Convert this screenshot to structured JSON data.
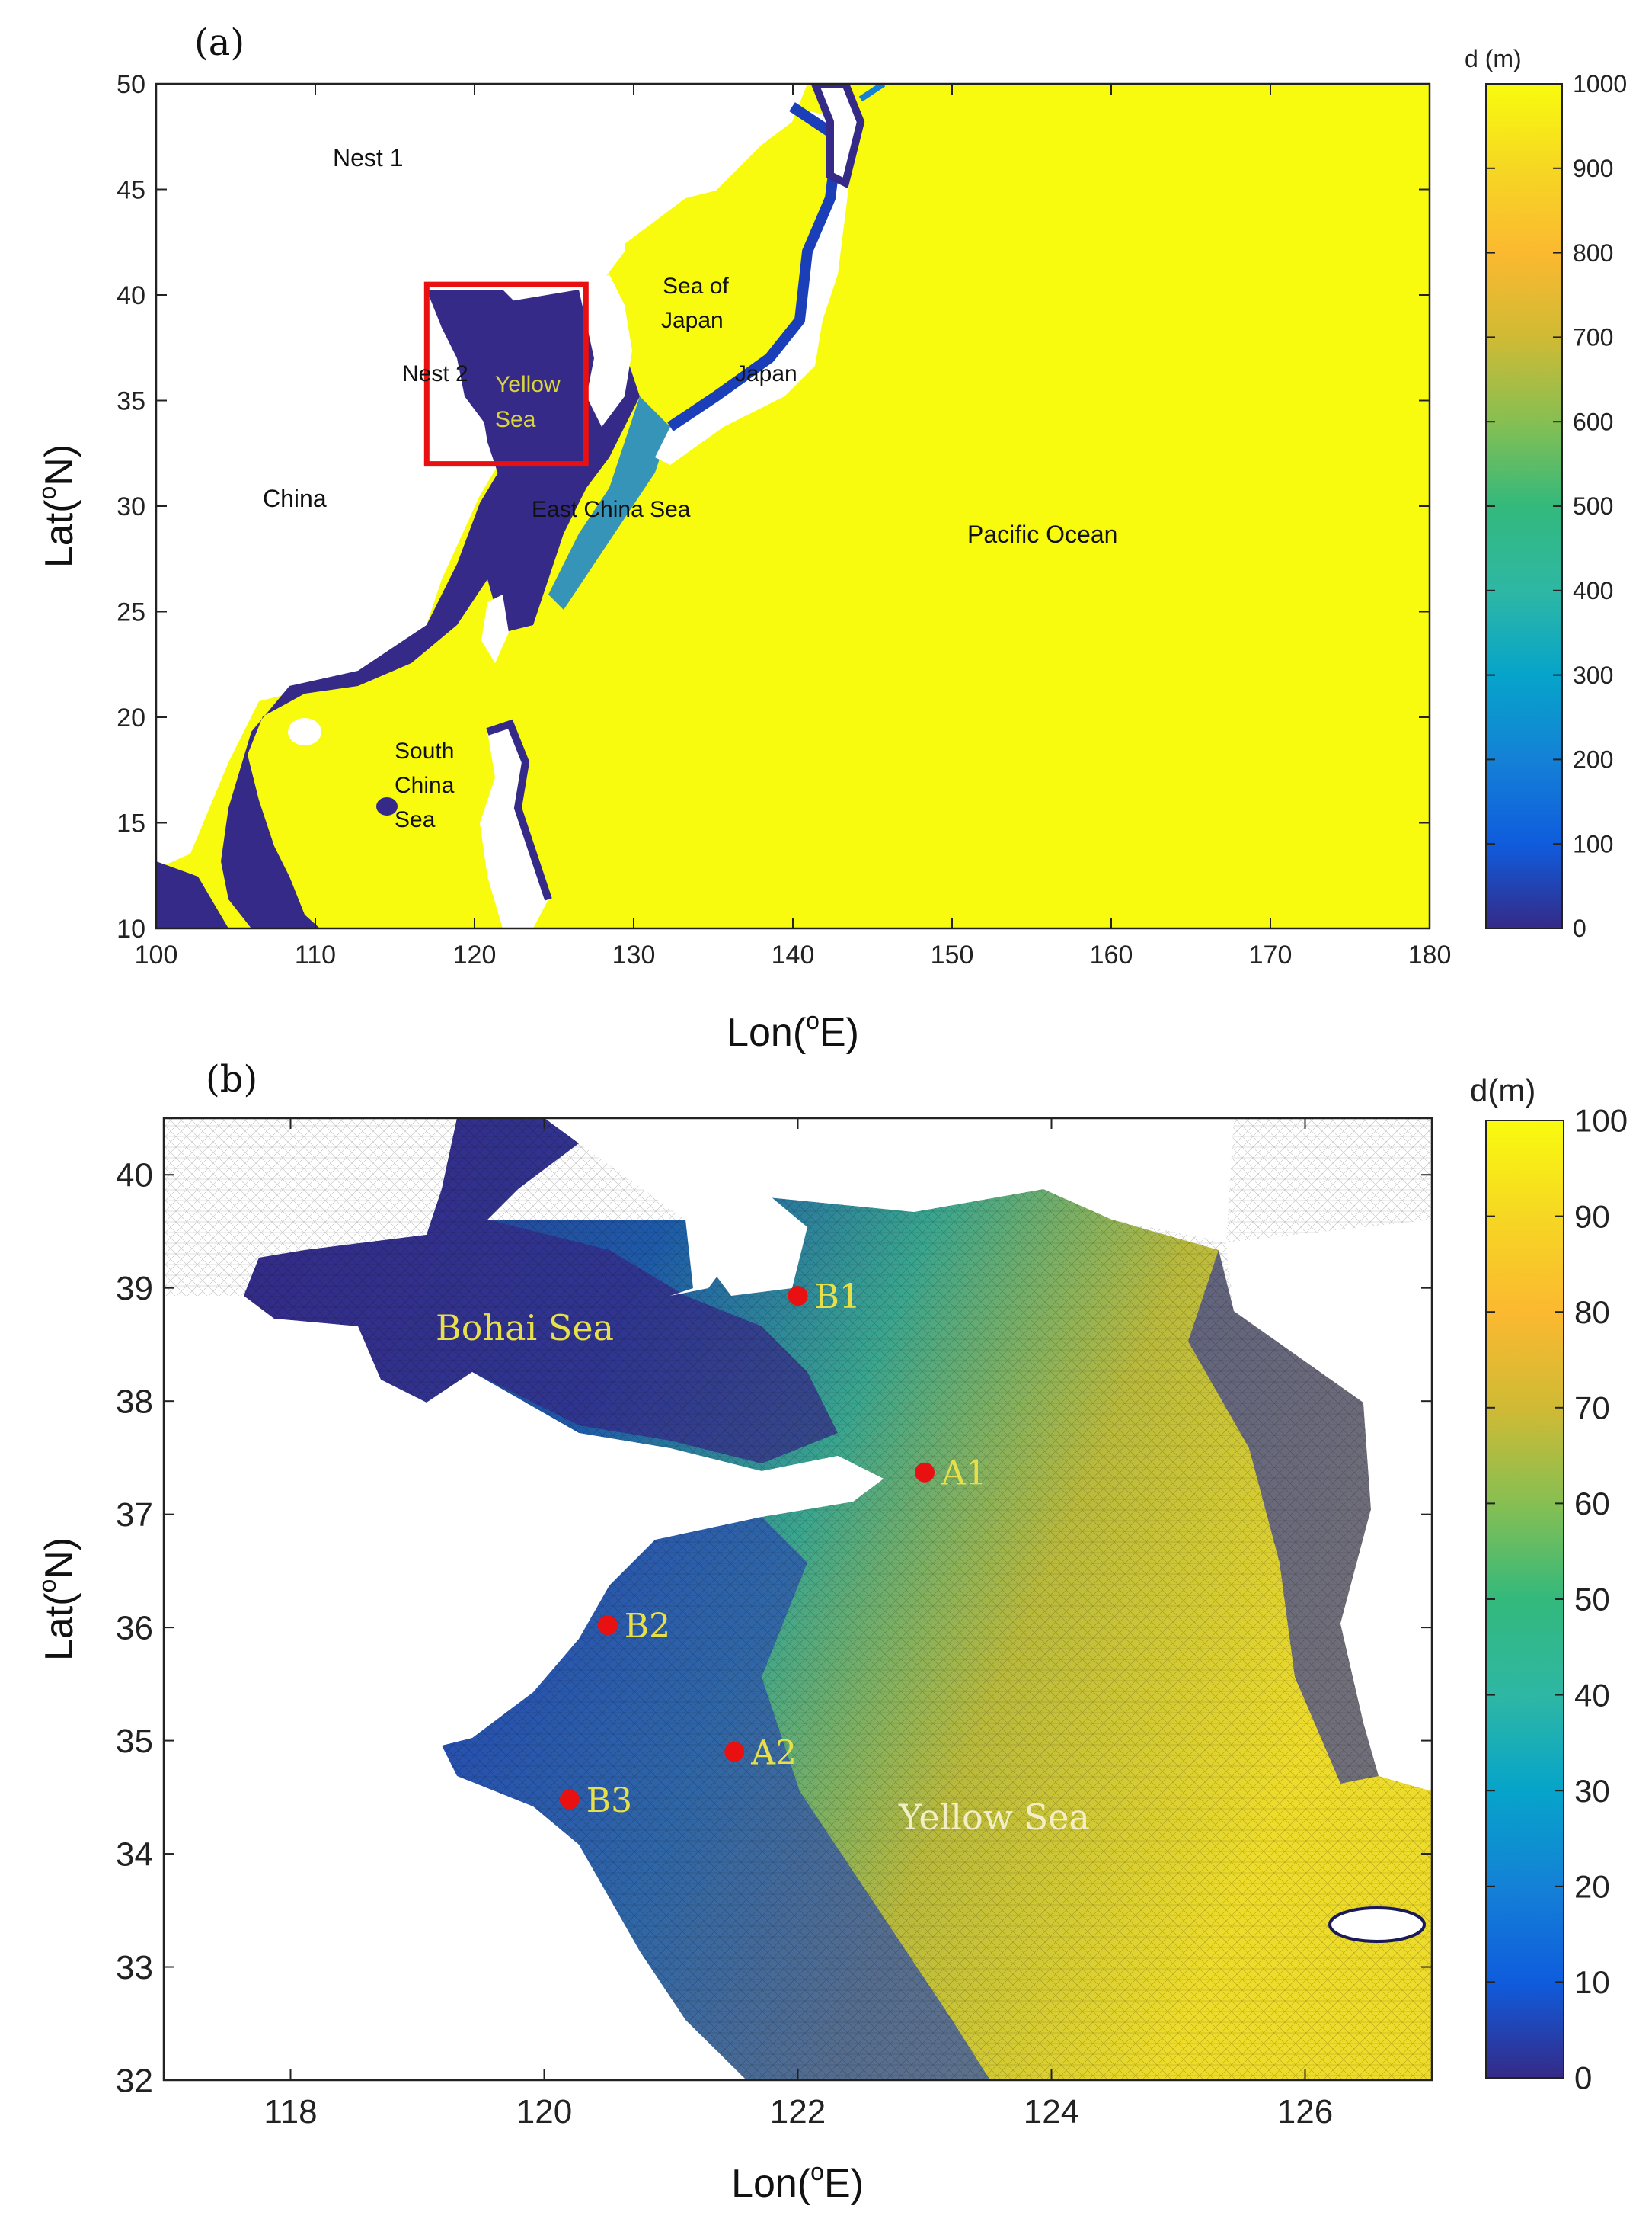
{
  "panel_a": {
    "letter": "(a)",
    "xlabel_main": "Lon(",
    "xlabel_sup": "o",
    "xlabel_end": "E)",
    "ylabel_main": "Lat(",
    "ylabel_sup": "o",
    "ylabel_end": "N)",
    "xlim": [
      100,
      180
    ],
    "ylim": [
      10,
      50
    ],
    "xticks": [
      "100",
      "110",
      "120",
      "130",
      "140",
      "150",
      "160",
      "170",
      "180"
    ],
    "yticks": [
      "10",
      "15",
      "20",
      "25",
      "30",
      "35",
      "40",
      "45",
      "50"
    ],
    "colorbar": {
      "title": "d (m)",
      "range": [
        0,
        1000
      ],
      "ticks": [
        "0",
        "100",
        "200",
        "300",
        "400",
        "500",
        "600",
        "700",
        "800",
        "900",
        "1000"
      ]
    },
    "nest_box_lon": [
      117,
      127
    ],
    "nest_box_lat": [
      32,
      40.5
    ],
    "labels": {
      "nest1": "Nest 1",
      "nest2": "Nest 2",
      "yellow_sea_1": "Yellow",
      "yellow_sea_2": "Sea",
      "sea_of_japan_1": "Sea of",
      "sea_of_japan_2": "Japan",
      "japan": "Japan",
      "china": "China",
      "east_china_sea": "East China Sea",
      "pacific": "Pacific Ocean",
      "scs_1": "South",
      "scs_2": "China",
      "scs_3": "Sea"
    }
  },
  "panel_b": {
    "letter": "(b)",
    "xlabel_main": "Lon(",
    "xlabel_sup": "o",
    "xlabel_end": "E)",
    "ylabel_main": "Lat(",
    "ylabel_sup": "o",
    "ylabel_end": "N)",
    "xlim": [
      117,
      127
    ],
    "ylim": [
      32,
      40.5
    ],
    "xticks": [
      "118",
      "120",
      "122",
      "124",
      "126"
    ],
    "yticks": [
      "32",
      "33",
      "34",
      "35",
      "36",
      "37",
      "38",
      "39",
      "40"
    ],
    "colorbar": {
      "title": "d(m)",
      "range": [
        0,
        100
      ],
      "ticks": [
        "0",
        "10",
        "20",
        "30",
        "40",
        "50",
        "60",
        "70",
        "80",
        "90",
        "100"
      ]
    },
    "labels": {
      "bohai": "Bohai Sea",
      "yellow": "Yellow Sea"
    },
    "stations": [
      {
        "name": "B1",
        "lon": 122.0,
        "lat": 38.93
      },
      {
        "name": "A1",
        "lon": 123.0,
        "lat": 37.37
      },
      {
        "name": "B2",
        "lon": 120.5,
        "lat": 36.02
      },
      {
        "name": "A2",
        "lon": 121.5,
        "lat": 34.9
      },
      {
        "name": "B3",
        "lon": 120.2,
        "lat": 34.48
      }
    ],
    "colors": {
      "station": "#e81010",
      "label": "#e8e04a"
    }
  }
}
